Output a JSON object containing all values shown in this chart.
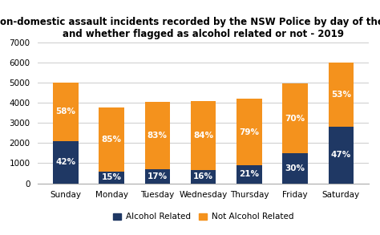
{
  "title": "Non-domestic assault incidents recorded by the NSW Police by day of the week\nand whether flagged as alcohol related or not - 2019",
  "categories": [
    "Sunday",
    "Monday",
    "Tuesday",
    "Wednesday",
    "Thursday",
    "Friday",
    "Saturday"
  ],
  "alcohol_values": [
    2100,
    562,
    688,
    656,
    882,
    1485,
    2820
  ],
  "not_alcohol_values": [
    2900,
    3188,
    3362,
    3444,
    3318,
    3465,
    3180
  ],
  "alcohol_pct": [
    "42%",
    "15%",
    "17%",
    "16%",
    "21%",
    "30%",
    "47%"
  ],
  "not_alcohol_pct": [
    "58%",
    "85%",
    "83%",
    "84%",
    "79%",
    "70%",
    "53%"
  ],
  "alcohol_color": "#1f3864",
  "not_alcohol_color": "#f4921d",
  "ylim": [
    0,
    7000
  ],
  "yticks": [
    0,
    1000,
    2000,
    3000,
    4000,
    5000,
    6000,
    7000
  ],
  "background_color": "#ffffff",
  "title_fontsize": 8.5,
  "label_fontsize": 7.5,
  "tick_fontsize": 7.5,
  "legend_fontsize": 7.5,
  "bar_width": 0.55
}
